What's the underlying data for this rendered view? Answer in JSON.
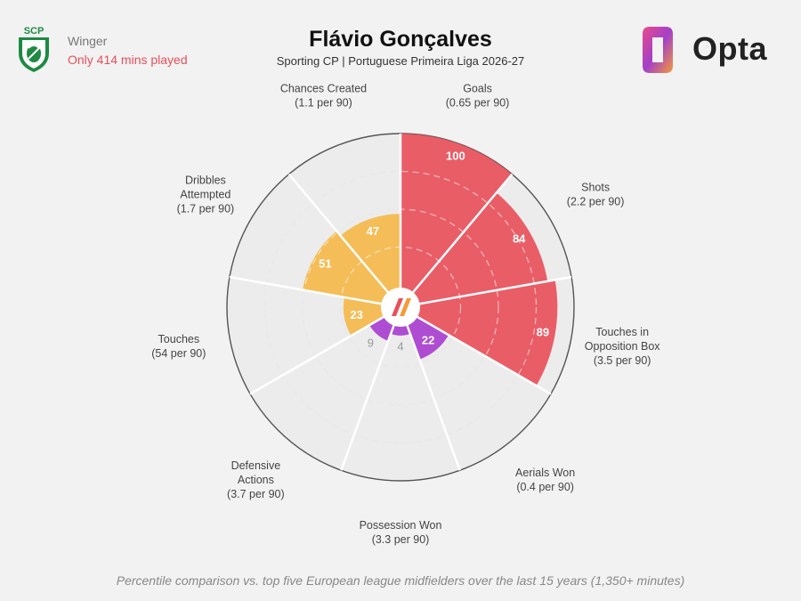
{
  "header": {
    "position": "Winger",
    "minutes_note": "Only 414 mins played",
    "player": "Flávio Gonçalves",
    "subtitle": "Sporting CP | Portuguese Primeira Liga 2026-27",
    "brand": "Opta",
    "club_badge_text": "SCP"
  },
  "footer": {
    "note": "Percentile comparison vs. top five European league midfielders over the last 15 years (1,350+ minutes)"
  },
  "colors": {
    "attacking": "#e8505b",
    "possession": "#f4b84a",
    "defending": "#a83fcf",
    "minutes_note": "#e8505b"
  },
  "chart_data": {
    "type": "radar-bar",
    "scale": [
      0,
      100
    ],
    "grid": "dashed rings",
    "metrics": [
      {
        "name": "Goals",
        "per90": "(0.65 per 90)",
        "percentile": 100,
        "group": "attacking"
      },
      {
        "name": "Shots",
        "per90": "(2.2 per 90)",
        "percentile": 84,
        "group": "attacking"
      },
      {
        "name": "Touches in Opposition Box",
        "per90": "(3.5 per 90)",
        "percentile": 89,
        "group": "attacking"
      },
      {
        "name": "Aerials Won",
        "per90": "(0.4 per 90)",
        "percentile": 22,
        "group": "defending"
      },
      {
        "name": "Possession Won",
        "per90": "(3.3 per 90)",
        "percentile": 4,
        "group": "defending"
      },
      {
        "name": "Defensive Actions",
        "per90": "(3.7 per 90)",
        "percentile": 9,
        "group": "defending"
      },
      {
        "name": "Touches",
        "per90": "(54 per 90)",
        "percentile": 23,
        "group": "possession"
      },
      {
        "name": "Dribbles Attempted",
        "per90": "(1.7 per 90)",
        "percentile": 51,
        "group": "possession"
      },
      {
        "name": "Chances Created",
        "per90": "(1.1 per 90)",
        "percentile": 47,
        "group": "possession"
      }
    ]
  }
}
